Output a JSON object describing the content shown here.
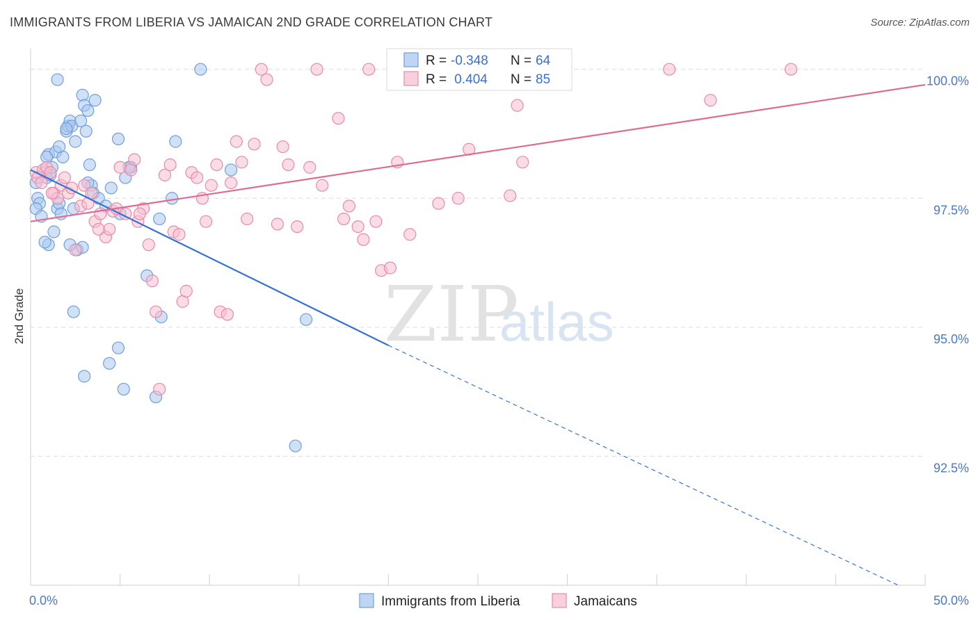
{
  "header": {
    "title": "IMMIGRANTS FROM LIBERIA VS JAMAICAN 2ND GRADE CORRELATION CHART",
    "source": "Source: ZipAtlas.com"
  },
  "colors": {
    "blue_fill": "#a9c8ef",
    "blue_stroke": "#6f9fde",
    "blue_line": "#3572d2",
    "pink_fill": "#f6bfd0",
    "pink_stroke": "#e98aa9",
    "pink_line": "#e06a93",
    "grid": "#dcdcdc",
    "tick_text": "#4a78c8"
  },
  "legend": {
    "rows": [
      {
        "r_label": "R = ",
        "r_value": "-0.348",
        "n_label": "N = ",
        "n_value": "64",
        "color": "blue"
      },
      {
        "r_label": "R = ",
        "r_value": " 0.404",
        "n_label": "N = ",
        "n_value": "85",
        "color": "pink"
      }
    ]
  },
  "watermark": {
    "zip": "ZIP",
    "atlas": "atlas"
  },
  "chart_data": {
    "type": "scatter",
    "title": "IMMIGRANTS FROM LIBERIA VS JAMAICAN 2ND GRADE CORRELATION CHART",
    "xlabel": "",
    "ylabel": "2nd Grade",
    "xlim": [
      0,
      50
    ],
    "ylim": [
      90.0,
      100.4
    ],
    "x_ticks": [
      0,
      50
    ],
    "x_tick_labels": [
      "0.0%",
      "50.0%"
    ],
    "y_ticks": [
      92.5,
      95.0,
      97.5,
      100.0
    ],
    "y_tick_labels": [
      "92.5%",
      "95.0%",
      "97.5%",
      "100.0%"
    ],
    "grid": true,
    "legend_position": "top-center",
    "series": [
      {
        "name": "Immigrants from Liberia",
        "color": "blue",
        "trend": {
          "x0": 0,
          "y0": 98.05,
          "x1": 20,
          "y1": 94.65,
          "dashed_to_x": 48.5,
          "dashed_to_y": 90.0
        },
        "points": [
          [
            0.3,
            97.8
          ],
          [
            0.4,
            97.5
          ],
          [
            0.5,
            97.4
          ],
          [
            0.3,
            97.3
          ],
          [
            0.6,
            97.15
          ],
          [
            0.8,
            98.0
          ],
          [
            0.9,
            97.9
          ],
          [
            1.0,
            98.35
          ],
          [
            1.1,
            97.95
          ],
          [
            1.2,
            98.1
          ],
          [
            1.3,
            96.85
          ],
          [
            1.0,
            96.6
          ],
          [
            1.5,
            97.3
          ],
          [
            1.4,
            98.4
          ],
          [
            1.6,
            97.4
          ],
          [
            1.7,
            97.2
          ],
          [
            1.8,
            98.3
          ],
          [
            1.6,
            98.5
          ],
          [
            2.0,
            98.8
          ],
          [
            2.1,
            98.9
          ],
          [
            2.2,
            99.0
          ],
          [
            2.3,
            98.9
          ],
          [
            2.4,
            97.3
          ],
          [
            2.5,
            98.6
          ],
          [
            2.6,
            96.5
          ],
          [
            2.8,
            99.0
          ],
          [
            2.9,
            99.5
          ],
          [
            3.0,
            99.3
          ],
          [
            3.1,
            98.8
          ],
          [
            3.2,
            99.2
          ],
          [
            3.3,
            98.15
          ],
          [
            3.4,
            97.75
          ],
          [
            3.5,
            97.6
          ],
          [
            3.6,
            99.4
          ],
          [
            3.8,
            97.5
          ],
          [
            4.2,
            97.35
          ],
          [
            4.5,
            97.7
          ],
          [
            4.9,
            98.65
          ],
          [
            5.0,
            97.2
          ],
          [
            5.3,
            97.9
          ],
          [
            5.6,
            98.1
          ],
          [
            6.5,
            96.0
          ],
          [
            7.2,
            97.1
          ],
          [
            7.3,
            95.2
          ],
          [
            7.9,
            97.5
          ],
          [
            8.1,
            98.6
          ],
          [
            9.5,
            100.0
          ],
          [
            11.2,
            98.05
          ],
          [
            14.8,
            92.7
          ],
          [
            15.4,
            95.15
          ],
          [
            0.8,
            96.65
          ],
          [
            2.2,
            96.6
          ],
          [
            2.9,
            96.55
          ],
          [
            2.4,
            95.3
          ],
          [
            3.0,
            94.05
          ],
          [
            4.4,
            94.3
          ],
          [
            4.9,
            94.6
          ],
          [
            5.2,
            93.8
          ],
          [
            7.0,
            93.65
          ],
          [
            1.5,
            99.8
          ],
          [
            2.0,
            98.85
          ],
          [
            3.2,
            97.8
          ],
          [
            0.9,
            98.3
          ],
          [
            5.5,
            98.1
          ]
        ]
      },
      {
        "name": "Jamaicans",
        "color": "pink",
        "trend": {
          "x0": 0,
          "y0": 97.05,
          "x1": 50,
          "y1": 99.7
        },
        "points": [
          [
            0.3,
            98.0
          ],
          [
            0.4,
            97.9
          ],
          [
            0.6,
            97.8
          ],
          [
            0.7,
            98.05
          ],
          [
            0.9,
            98.1
          ],
          [
            1.1,
            98.0
          ],
          [
            1.3,
            97.6
          ],
          [
            1.5,
            97.5
          ],
          [
            1.7,
            97.75
          ],
          [
            1.9,
            97.9
          ],
          [
            2.1,
            97.6
          ],
          [
            2.3,
            97.7
          ],
          [
            2.5,
            96.5
          ],
          [
            2.8,
            97.35
          ],
          [
            3.0,
            97.75
          ],
          [
            3.2,
            97.4
          ],
          [
            3.4,
            97.6
          ],
          [
            3.6,
            97.05
          ],
          [
            3.9,
            97.2
          ],
          [
            4.2,
            96.75
          ],
          [
            4.4,
            96.9
          ],
          [
            4.6,
            97.25
          ],
          [
            4.8,
            97.3
          ],
          [
            5.0,
            98.1
          ],
          [
            5.3,
            97.2
          ],
          [
            5.6,
            98.05
          ],
          [
            5.8,
            98.25
          ],
          [
            6.0,
            97.05
          ],
          [
            6.3,
            97.3
          ],
          [
            6.6,
            96.6
          ],
          [
            6.8,
            95.9
          ],
          [
            7.0,
            95.3
          ],
          [
            7.2,
            93.8
          ],
          [
            7.5,
            97.95
          ],
          [
            7.8,
            98.15
          ],
          [
            8.0,
            96.85
          ],
          [
            8.3,
            96.8
          ],
          [
            8.5,
            95.5
          ],
          [
            8.7,
            95.7
          ],
          [
            9.0,
            98.0
          ],
          [
            9.3,
            97.9
          ],
          [
            9.6,
            97.5
          ],
          [
            9.8,
            97.05
          ],
          [
            10.1,
            97.75
          ],
          [
            10.4,
            98.15
          ],
          [
            10.6,
            95.3
          ],
          [
            11.0,
            95.25
          ],
          [
            11.2,
            97.8
          ],
          [
            11.5,
            98.6
          ],
          [
            11.8,
            98.2
          ],
          [
            12.1,
            97.1
          ],
          [
            12.5,
            98.55
          ],
          [
            12.9,
            100.0
          ],
          [
            13.2,
            99.8
          ],
          [
            13.8,
            97.0
          ],
          [
            14.1,
            98.5
          ],
          [
            14.4,
            98.15
          ],
          [
            14.9,
            96.95
          ],
          [
            15.6,
            98.1
          ],
          [
            16.0,
            100.0
          ],
          [
            16.3,
            97.75
          ],
          [
            17.2,
            99.05
          ],
          [
            17.5,
            97.1
          ],
          [
            17.8,
            97.35
          ],
          [
            18.3,
            96.95
          ],
          [
            18.6,
            96.7
          ],
          [
            18.9,
            100.0
          ],
          [
            19.3,
            97.05
          ],
          [
            19.6,
            96.1
          ],
          [
            20.1,
            96.15
          ],
          [
            20.5,
            98.2
          ],
          [
            21.2,
            96.8
          ],
          [
            22.8,
            97.4
          ],
          [
            23.9,
            97.5
          ],
          [
            24.5,
            98.45
          ],
          [
            26.8,
            97.55
          ],
          [
            27.2,
            99.3
          ],
          [
            27.5,
            98.2
          ],
          [
            28.2,
            100.0
          ],
          [
            35.7,
            100.0
          ],
          [
            38.0,
            99.4
          ],
          [
            42.5,
            100.0
          ],
          [
            6.1,
            97.2
          ],
          [
            3.8,
            96.9
          ],
          [
            1.2,
            97.6
          ]
        ]
      }
    ]
  },
  "bottom_legend": [
    {
      "label": "Immigrants from Liberia",
      "color": "blue"
    },
    {
      "label": "Jamaicans",
      "color": "pink"
    }
  ]
}
